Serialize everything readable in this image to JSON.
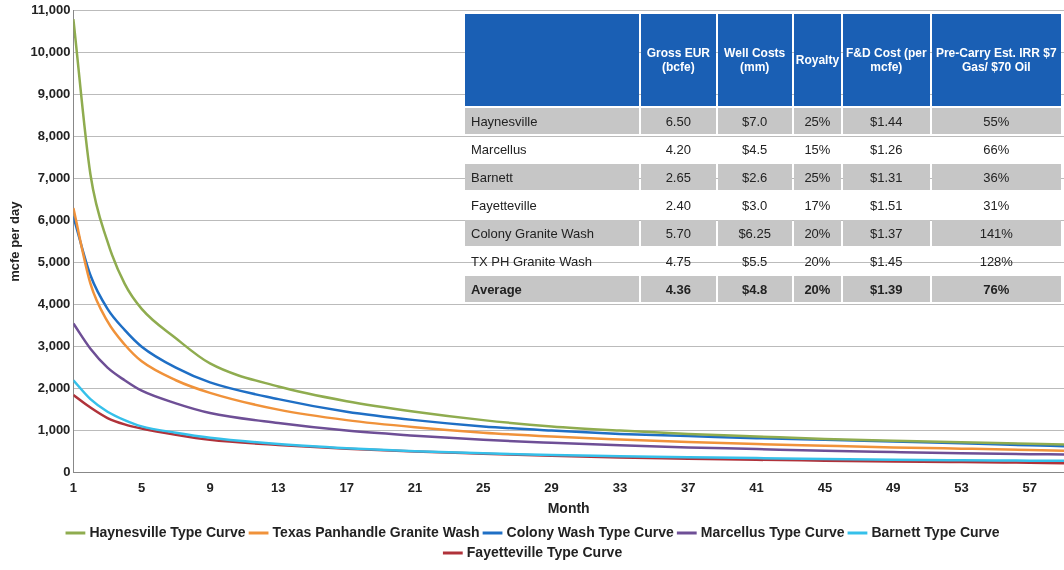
{
  "chart_data": [
    {
      "type": "line",
      "xlabel": "Month",
      "ylabel": "mcfe per day",
      "x": [
        1,
        2,
        3,
        4,
        5,
        7,
        9,
        13,
        17,
        21,
        25,
        29,
        33,
        37,
        41,
        45,
        49,
        53,
        57,
        59
      ],
      "xlim": [
        1,
        59
      ],
      "xticks": [
        1,
        5,
        9,
        13,
        17,
        21,
        25,
        29,
        33,
        37,
        41,
        45,
        49,
        53,
        57
      ],
      "ylim": [
        0,
        11000
      ],
      "yticks": [
        {
          "value": 0,
          "label": "0"
        },
        {
          "value": 1000,
          "label": "1,000"
        },
        {
          "value": 2000,
          "label": "2,000"
        },
        {
          "value": 3000,
          "label": "3,000"
        },
        {
          "value": 4000,
          "label": "4,000"
        },
        {
          "value": 5000,
          "label": "5,000"
        },
        {
          "value": 6000,
          "label": "6,000"
        },
        {
          "value": 7000,
          "label": "7,000"
        },
        {
          "value": 8000,
          "label": "8,000"
        },
        {
          "value": 9000,
          "label": "9,000"
        },
        {
          "value": 10000,
          "label": "10,000"
        },
        {
          "value": 11000,
          "label": "11,000"
        }
      ],
      "grid": "y",
      "legend": "bottom",
      "marker": "none",
      "line_style": "solid",
      "series": [
        {
          "name": "Haynesville Type Curve",
          "color": "#8fac4f",
          "values": [
            10800,
            7100,
            5500,
            4500,
            3900,
            3200,
            2600,
            2050,
            1700,
            1450,
            1250,
            1100,
            1000,
            920,
            860,
            800,
            760,
            720,
            690,
            670
          ]
        },
        {
          "name": "Texas Panhandle Granite Wash",
          "color": "#f0923a",
          "values": [
            6300,
            4500,
            3600,
            3050,
            2650,
            2200,
            1900,
            1500,
            1250,
            1080,
            950,
            860,
            790,
            730,
            680,
            640,
            600,
            570,
            540,
            520
          ]
        },
        {
          "name": "Colony Wash Type Curve",
          "color": "#1f6fc5",
          "values": [
            6100,
            4700,
            3900,
            3400,
            3000,
            2500,
            2150,
            1750,
            1450,
            1250,
            1100,
            1000,
            920,
            870,
            820,
            780,
            740,
            700,
            650,
            630
          ]
        },
        {
          "name": "Marcellus Type Curve",
          "color": "#6e4f96",
          "values": [
            3550,
            2950,
            2500,
            2200,
            1950,
            1650,
            1420,
            1180,
            1000,
            880,
            780,
            710,
            650,
            600,
            560,
            520,
            490,
            460,
            440,
            430
          ]
        },
        {
          "name": "Barnett Type Curve",
          "color": "#35c0ea",
          "values": [
            2200,
            1750,
            1450,
            1250,
            1100,
            950,
            830,
            680,
            580,
            510,
            460,
            420,
            390,
            365,
            345,
            325,
            305,
            295,
            285,
            280
          ]
        },
        {
          "name": "Fayetteville Type Curve",
          "color": "#b0323a",
          "values": [
            1850,
            1550,
            1300,
            1150,
            1050,
            900,
            780,
            660,
            570,
            500,
            450,
            400,
            360,
            330,
            305,
            285,
            265,
            250,
            235,
            225
          ]
        }
      ]
    },
    {
      "type": "other",
      "categories": [
        null,
        "Gross EUR (bcfe)",
        "Well Costs (mm)",
        "Royalty",
        "F&D Cost (per mcfe)",
        "Pre-Carry Est. IRR $7 Gas/ $70 Oil"
      ],
      "y_categories": [
        "Haynesville",
        "Marcellus",
        "Barnett",
        "Fayetteville",
        "Colony Granite Wash",
        "TX PH Granite Wash",
        "Average"
      ],
      "cell_labels": [
        [
          "6.50",
          "$7.0",
          "25%",
          "$1.44",
          "55%"
        ],
        [
          "4.20",
          "$4.5",
          "15%",
          "$1.26",
          "66%"
        ],
        [
          "2.65",
          "$2.6",
          "25%",
          "$1.31",
          "36%"
        ],
        [
          "2.40",
          "$3.0",
          "17%",
          "$1.51",
          "31%"
        ],
        [
          "5.70",
          "$6.25",
          "20%",
          "$1.37",
          "141%"
        ],
        [
          "4.75",
          "$5.5",
          "20%",
          "$1.45",
          "128%"
        ],
        [
          "4.36",
          "$4.8",
          "20%",
          "$1.39",
          "76%"
        ]
      ]
    }
  ]
}
